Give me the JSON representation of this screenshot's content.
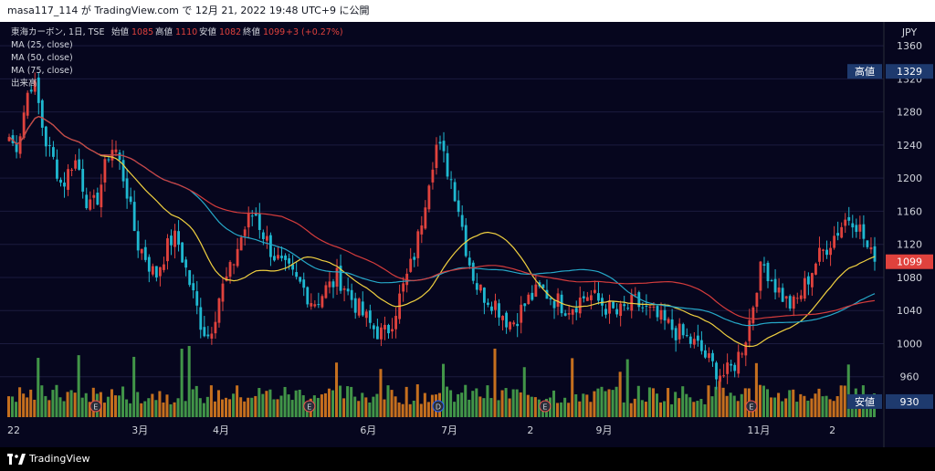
{
  "header": {
    "publish_line": "masa117_114 が TradingView.com で 12月 21, 2022 19:48 UTC+9 に公開"
  },
  "legend": {
    "symbol": "東海カーボン, 1日, TSE",
    "open_label": "始値",
    "open_value": "1085",
    "high_label": "高値",
    "high_value": "1110",
    "low_label": "安値",
    "low_value": "1082",
    "close_label": "終値",
    "close_value": "1099",
    "change": "+3 (+0.27%)",
    "ma25": "MA (25, close)",
    "ma50": "MA (50, close)",
    "ma75": "MA (75, close)",
    "volume": "出来高"
  },
  "footer": {
    "brand": "TradingView"
  },
  "colors": {
    "background": "#06061e",
    "grid": "#1b1b3f",
    "up": "#e0423d",
    "down": "#1fb8d0",
    "ma25": "#f0d040",
    "ma50": "#26a8c8",
    "ma75": "#d43c3c",
    "vol_up": "#e8821e",
    "vol_down": "#4caf50",
    "axis_text": "#d1d4dc"
  },
  "chart_data": {
    "type": "candlestick",
    "currency": "JPY",
    "y_range": [
      920,
      1380
    ],
    "y_ticks": [
      960,
      1000,
      1040,
      1080,
      1120,
      1160,
      1200,
      1240,
      1280,
      1320,
      1360
    ],
    "x_ticks": [
      "22",
      "3月",
      "4月",
      "6月",
      "7月",
      "2",
      "9月",
      "11月",
      "2"
    ],
    "marks": {
      "high": {
        "label": "高値",
        "value": "1329"
      },
      "low": {
        "label": "安値",
        "value": "930"
      },
      "last": {
        "value": "1099"
      }
    },
    "event_markers": [
      "E",
      "E",
      "D",
      "E",
      "E"
    ],
    "ohlc_trend": [
      1250,
      1235,
      1260,
      1300,
      1320,
      1290,
      1250,
      1230,
      1215,
      1190,
      1205,
      1225,
      1210,
      1180,
      1160,
      1175,
      1200,
      1230,
      1240,
      1215,
      1190,
      1150,
      1120,
      1110,
      1095,
      1080,
      1100,
      1115,
      1130,
      1120,
      1095,
      1070,
      1045,
      1020,
      1010,
      1030,
      1060,
      1075,
      1090,
      1115,
      1135,
      1150,
      1160,
      1140,
      1125,
      1110,
      1100,
      1090,
      1085,
      1075,
      1070,
      1060,
      1050,
      1055,
      1065,
      1070,
      1080,
      1075,
      1060,
      1050,
      1040,
      1030,
      1020,
      1015,
      1010,
      1020,
      1040,
      1060,
      1080,
      1100,
      1130,
      1170,
      1210,
      1240,
      1230,
      1210,
      1190,
      1160,
      1120,
      1090,
      1070,
      1060,
      1055,
      1050,
      1040,
      1030,
      1025,
      1035,
      1045,
      1055,
      1060,
      1065,
      1060,
      1055,
      1050,
      1045,
      1045,
      1050,
      1055,
      1060,
      1055,
      1050,
      1045,
      1040,
      1035,
      1040,
      1045,
      1050,
      1045,
      1040,
      1035,
      1030,
      1025,
      1020,
      1015,
      1010,
      1005,
      1000,
      995,
      985,
      975,
      968,
      962,
      965,
      975,
      990,
      1010,
      1040,
      1080,
      1095,
      1085,
      1070,
      1060,
      1050,
      1045,
      1055,
      1070,
      1085,
      1100,
      1110,
      1120,
      1130,
      1140,
      1150,
      1155,
      1145,
      1130,
      1110,
      1099
    ]
  }
}
